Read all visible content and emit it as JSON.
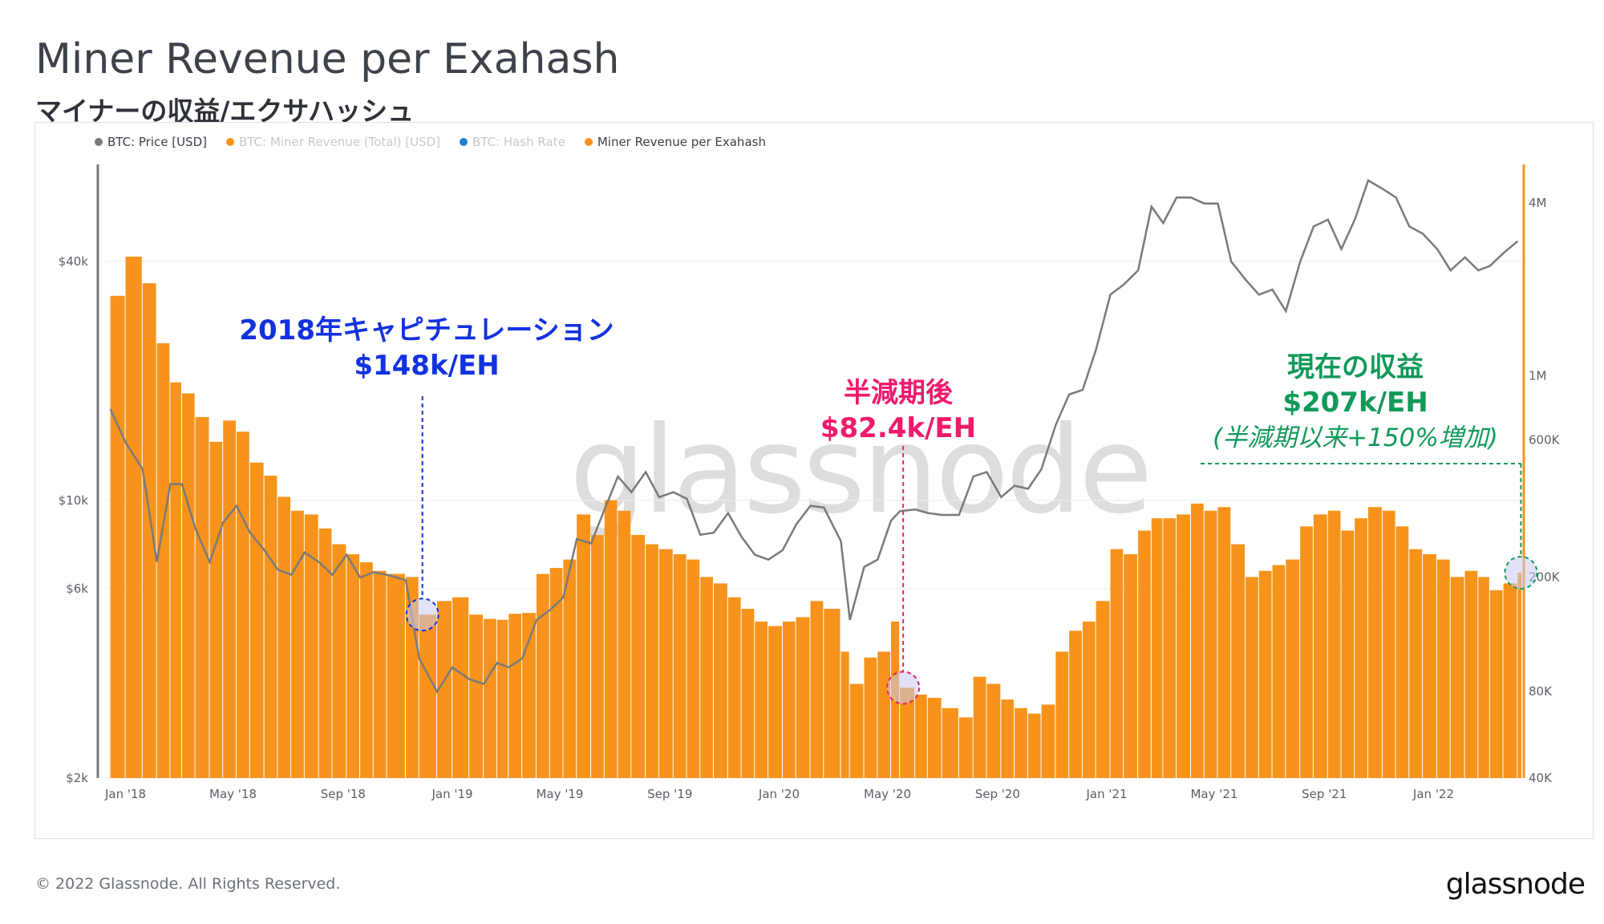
{
  "title": "Miner Revenue per Exahash",
  "subtitle": "マイナーの収益/エクサハッシュ",
  "legend": [
    {
      "label": "BTC: Price [USD]",
      "color": "#7a7a7a",
      "active": true
    },
    {
      "label": "BTC: Miner Revenue (Total) [USD]",
      "color": "#f7931a",
      "active": false
    },
    {
      "label": "BTC: Hash Rate",
      "color": "#1f7fd6",
      "active": false
    },
    {
      "label": "Miner Revenue per Exahash",
      "color": "#f7931a",
      "active": true
    }
  ],
  "watermark": "glassnode",
  "annotations": {
    "capitulation": {
      "line1": "2018年キャピチュレーション",
      "line2": "$148k/EH",
      "color": "#1232e0"
    },
    "halving": {
      "line1": "半減期後",
      "line2": "$82.4k/EH",
      "color": "#ef1a6c"
    },
    "current": {
      "line1": "現在の収益",
      "line2": "$207k/EH",
      "line3": "(半減期以来+150%増加)",
      "color": "#12995a"
    }
  },
  "footer": {
    "copyright": "© 2022 Glassnode. All Rights Reserved.",
    "logo": "glassnode"
  },
  "chart_data": {
    "type": "bar",
    "x_tick_labels": [
      "Jan '18",
      "May '18",
      "Sep '18",
      "Jan '19",
      "May '19",
      "Sep '19",
      "Jan '20",
      "May '20",
      "Sep '20",
      "Jan '21",
      "May '21",
      "Sep '21",
      "Jan '22"
    ],
    "y_left": {
      "scale": "log",
      "ticks": [
        "$2k",
        "$6k",
        "$10k",
        "$40k"
      ],
      "tick_values": [
        2000,
        6000,
        10000,
        40000
      ],
      "range": [
        2000,
        68000
      ]
    },
    "y_right": {
      "scale": "log",
      "ticks": [
        "40K",
        "80K",
        "200K",
        "600K",
        "1M",
        "4M"
      ],
      "tick_values": [
        40000,
        80000,
        200000,
        600000,
        1000000,
        4000000
      ],
      "range": [
        40000,
        5200000
      ]
    },
    "series": [
      {
        "name": "Miner Revenue per Exahash",
        "type": "bar",
        "axis": "right",
        "color": "#f7931a",
        "points": [
          [
            "2017-12-15",
            1900000
          ],
          [
            "2018-01-01",
            2600000
          ],
          [
            "2018-01-20",
            2100000
          ],
          [
            "2018-02-05",
            1300000
          ],
          [
            "2018-02-20",
            950000
          ],
          [
            "2018-03-05",
            870000
          ],
          [
            "2018-03-20",
            720000
          ],
          [
            "2018-04-05",
            590000
          ],
          [
            "2018-04-20",
            700000
          ],
          [
            "2018-05-05",
            640000
          ],
          [
            "2018-05-20",
            500000
          ],
          [
            "2018-06-05",
            450000
          ],
          [
            "2018-06-20",
            380000
          ],
          [
            "2018-07-05",
            340000
          ],
          [
            "2018-07-20",
            330000
          ],
          [
            "2018-08-05",
            295000
          ],
          [
            "2018-08-20",
            260000
          ],
          [
            "2018-09-05",
            240000
          ],
          [
            "2018-09-20",
            225000
          ],
          [
            "2018-10-05",
            210000
          ],
          [
            "2018-10-20",
            205000
          ],
          [
            "2018-11-10",
            200000
          ],
          [
            "2018-11-25",
            148000
          ],
          [
            "2018-12-15",
            165000
          ],
          [
            "2019-01-01",
            170000
          ],
          [
            "2019-01-20",
            148000
          ],
          [
            "2019-02-05",
            143000
          ],
          [
            "2019-02-20",
            142000
          ],
          [
            "2019-03-05",
            149000
          ],
          [
            "2019-03-20",
            150000
          ],
          [
            "2019-04-05",
            205000
          ],
          [
            "2019-04-20",
            215000
          ],
          [
            "2019-05-05",
            230000
          ],
          [
            "2019-05-20",
            330000
          ],
          [
            "2019-06-05",
            280000
          ],
          [
            "2019-06-20",
            370000
          ],
          [
            "2019-07-05",
            340000
          ],
          [
            "2019-07-20",
            280000
          ],
          [
            "2019-08-05",
            260000
          ],
          [
            "2019-08-20",
            250000
          ],
          [
            "2019-09-05",
            240000
          ],
          [
            "2019-09-20",
            230000
          ],
          [
            "2019-10-05",
            200000
          ],
          [
            "2019-10-20",
            190000
          ],
          [
            "2019-11-05",
            170000
          ],
          [
            "2019-11-20",
            155000
          ],
          [
            "2019-12-05",
            140000
          ],
          [
            "2019-12-20",
            135000
          ],
          [
            "2020-01-05",
            140000
          ],
          [
            "2020-01-20",
            145000
          ],
          [
            "2020-02-05",
            165000
          ],
          [
            "2020-02-20",
            155000
          ],
          [
            "2020-03-10",
            110000
          ],
          [
            "2020-03-20",
            85000
          ],
          [
            "2020-04-05",
            105000
          ],
          [
            "2020-04-20",
            110000
          ],
          [
            "2020-05-05",
            140000
          ],
          [
            "2020-05-15",
            82400
          ],
          [
            "2020-06-01",
            78000
          ],
          [
            "2020-06-15",
            76000
          ],
          [
            "2020-07-01",
            70000
          ],
          [
            "2020-07-20",
            65000
          ],
          [
            "2020-08-05",
            90000
          ],
          [
            "2020-08-20",
            85000
          ],
          [
            "2020-09-05",
            75000
          ],
          [
            "2020-09-20",
            70000
          ],
          [
            "2020-10-05",
            67000
          ],
          [
            "2020-10-20",
            72000
          ],
          [
            "2020-11-05",
            110000
          ],
          [
            "2020-11-20",
            130000
          ],
          [
            "2020-12-05",
            140000
          ],
          [
            "2020-12-20",
            165000
          ],
          [
            "2021-01-05",
            250000
          ],
          [
            "2021-01-20",
            240000
          ],
          [
            "2021-02-05",
            290000
          ],
          [
            "2021-02-20",
            320000
          ],
          [
            "2021-03-05",
            320000
          ],
          [
            "2021-03-20",
            330000
          ],
          [
            "2021-04-05",
            360000
          ],
          [
            "2021-04-20",
            340000
          ],
          [
            "2021-05-05",
            350000
          ],
          [
            "2021-05-20",
            260000
          ],
          [
            "2021-06-05",
            200000
          ],
          [
            "2021-06-20",
            210000
          ],
          [
            "2021-07-05",
            220000
          ],
          [
            "2021-07-20",
            230000
          ],
          [
            "2021-08-05",
            300000
          ],
          [
            "2021-08-20",
            330000
          ],
          [
            "2021-09-05",
            340000
          ],
          [
            "2021-09-20",
            290000
          ],
          [
            "2021-10-05",
            320000
          ],
          [
            "2021-10-20",
            350000
          ],
          [
            "2021-11-05",
            340000
          ],
          [
            "2021-11-20",
            300000
          ],
          [
            "2021-12-05",
            250000
          ],
          [
            "2021-12-20",
            240000
          ],
          [
            "2022-01-05",
            230000
          ],
          [
            "2022-01-20",
            200000
          ],
          [
            "2022-02-05",
            210000
          ],
          [
            "2022-02-20",
            200000
          ],
          [
            "2022-03-05",
            180000
          ],
          [
            "2022-03-20",
            190000
          ],
          [
            "2022-04-05",
            207000
          ]
        ]
      },
      {
        "name": "BTC: Price [USD]",
        "type": "line",
        "axis": "left",
        "color": "#7a7a7a",
        "points": [
          [
            "2017-12-15",
            17000
          ],
          [
            "2018-01-01",
            14000
          ],
          [
            "2018-01-20",
            12000
          ],
          [
            "2018-02-05",
            7000
          ],
          [
            "2018-02-20",
            11000
          ],
          [
            "2018-03-05",
            11000
          ],
          [
            "2018-03-20",
            8500
          ],
          [
            "2018-04-05",
            7000
          ],
          [
            "2018-04-20",
            8800
          ],
          [
            "2018-05-05",
            9700
          ],
          [
            "2018-05-20",
            8300
          ],
          [
            "2018-06-05",
            7500
          ],
          [
            "2018-06-20",
            6700
          ],
          [
            "2018-07-05",
            6500
          ],
          [
            "2018-07-20",
            7400
          ],
          [
            "2018-08-05",
            7000
          ],
          [
            "2018-08-20",
            6500
          ],
          [
            "2018-09-05",
            7300
          ],
          [
            "2018-09-20",
            6400
          ],
          [
            "2018-10-05",
            6600
          ],
          [
            "2018-10-20",
            6500
          ],
          [
            "2018-11-10",
            6300
          ],
          [
            "2018-11-25",
            4000
          ],
          [
            "2018-12-15",
            3300
          ],
          [
            "2019-01-01",
            3800
          ],
          [
            "2019-01-20",
            3550
          ],
          [
            "2019-02-05",
            3450
          ],
          [
            "2019-02-20",
            3900
          ],
          [
            "2019-03-05",
            3800
          ],
          [
            "2019-03-20",
            4000
          ],
          [
            "2019-04-05",
            5000
          ],
          [
            "2019-04-20",
            5300
          ],
          [
            "2019-05-05",
            5700
          ],
          [
            "2019-05-20",
            8000
          ],
          [
            "2019-06-05",
            7800
          ],
          [
            "2019-06-20",
            9500
          ],
          [
            "2019-07-05",
            11500
          ],
          [
            "2019-07-20",
            10500
          ],
          [
            "2019-08-05",
            11800
          ],
          [
            "2019-08-20",
            10200
          ],
          [
            "2019-09-05",
            10500
          ],
          [
            "2019-09-20",
            10100
          ],
          [
            "2019-10-05",
            8200
          ],
          [
            "2019-10-20",
            8300
          ],
          [
            "2019-11-05",
            9300
          ],
          [
            "2019-11-20",
            8100
          ],
          [
            "2019-12-05",
            7300
          ],
          [
            "2019-12-20",
            7100
          ],
          [
            "2020-01-05",
            7500
          ],
          [
            "2020-01-20",
            8700
          ],
          [
            "2020-02-05",
            9700
          ],
          [
            "2020-02-20",
            9600
          ],
          [
            "2020-03-10",
            7900
          ],
          [
            "2020-03-20",
            5000
          ],
          [
            "2020-04-05",
            6800
          ],
          [
            "2020-04-20",
            7100
          ],
          [
            "2020-05-05",
            8900
          ],
          [
            "2020-05-15",
            9400
          ],
          [
            "2020-06-01",
            9500
          ],
          [
            "2020-06-15",
            9300
          ],
          [
            "2020-07-01",
            9200
          ],
          [
            "2020-07-20",
            9200
          ],
          [
            "2020-08-05",
            11500
          ],
          [
            "2020-08-20",
            11800
          ],
          [
            "2020-09-05",
            10200
          ],
          [
            "2020-09-20",
            10900
          ],
          [
            "2020-10-05",
            10700
          ],
          [
            "2020-10-20",
            12000
          ],
          [
            "2020-11-05",
            15500
          ],
          [
            "2020-11-20",
            18500
          ],
          [
            "2020-12-05",
            19000
          ],
          [
            "2020-12-20",
            24000
          ],
          [
            "2021-01-05",
            33000
          ],
          [
            "2021-01-20",
            35000
          ],
          [
            "2021-02-05",
            38000
          ],
          [
            "2021-02-20",
            55000
          ],
          [
            "2021-03-05",
            50000
          ],
          [
            "2021-03-20",
            58000
          ],
          [
            "2021-04-05",
            58000
          ],
          [
            "2021-04-20",
            56000
          ],
          [
            "2021-05-05",
            56000
          ],
          [
            "2021-05-20",
            40000
          ],
          [
            "2021-06-05",
            36000
          ],
          [
            "2021-06-20",
            33000
          ],
          [
            "2021-07-05",
            34000
          ],
          [
            "2021-07-20",
            30000
          ],
          [
            "2021-08-05",
            40000
          ],
          [
            "2021-08-20",
            49000
          ],
          [
            "2021-09-05",
            51000
          ],
          [
            "2021-09-20",
            43000
          ],
          [
            "2021-10-05",
            51000
          ],
          [
            "2021-10-20",
            64000
          ],
          [
            "2021-11-05",
            61000
          ],
          [
            "2021-11-20",
            58000
          ],
          [
            "2021-12-05",
            49000
          ],
          [
            "2021-12-20",
            47000
          ],
          [
            "2022-01-05",
            43000
          ],
          [
            "2022-01-20",
            38000
          ],
          [
            "2022-02-05",
            41000
          ],
          [
            "2022-02-20",
            38000
          ],
          [
            "2022-03-05",
            39000
          ],
          [
            "2022-03-20",
            42000
          ],
          [
            "2022-04-05",
            45000
          ]
        ]
      }
    ],
    "x_range": [
      "2017-12-10",
      "2022-04-10"
    ],
    "grid": true,
    "legend_position": "top-left"
  }
}
